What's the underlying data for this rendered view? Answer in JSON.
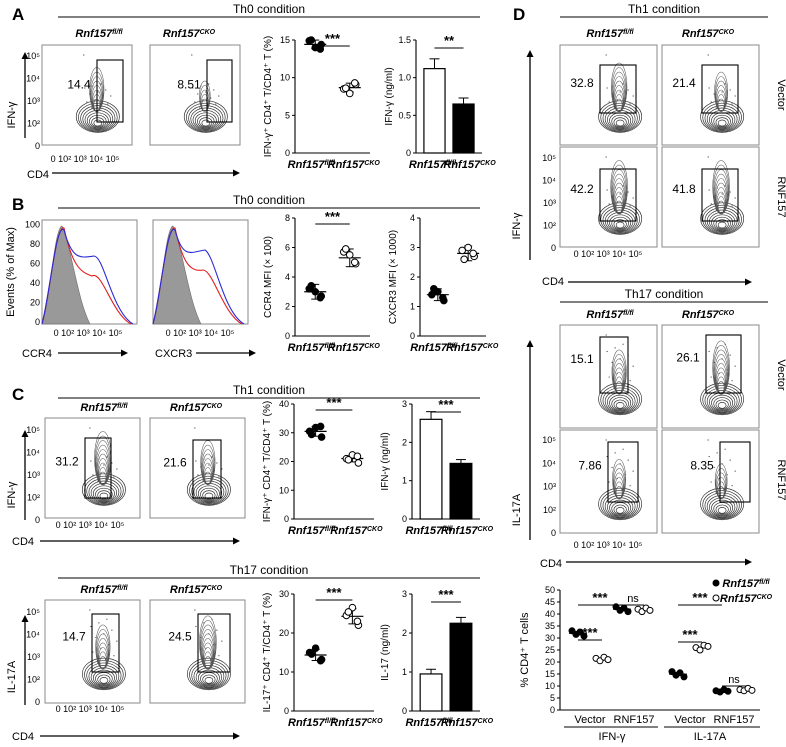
{
  "figure": {
    "panel_labels": [
      "A",
      "B",
      "C",
      "D"
    ],
    "genotypes": {
      "flox_base": "Rnf157",
      "flox_sup": "fl/fl",
      "cko_base": "Rnf157",
      "cko_sup": "CKO"
    },
    "axis_text": {
      "cd4": "CD4",
      "ifng": "IFN-γ",
      "il17a": "IL-17A",
      "ccr4": "CCR4",
      "cxcr3": "CXCR3",
      "events": "Events (% of Max)"
    },
    "flow_ticks": {
      "x": [
        "0",
        "10²",
        "10³",
        "10⁴",
        "10⁵"
      ],
      "y": [
        "0",
        "10²",
        "10³",
        "10⁴",
        "10⁵"
      ],
      "x_compact": "0 10² 10³ 10⁴ 10⁵",
      "hist_y": [
        "0",
        "20",
        "40",
        "60",
        "80",
        "100"
      ]
    }
  },
  "panel_A": {
    "condition": "Th0 condition",
    "flow": {
      "flox_pct": "14.4",
      "cko_pct": "8.51"
    },
    "chart_data": [
      {
        "type": "scatter",
        "ylabel": "IFN-γ⁺ CD4⁺ T/CD4⁺ T (%)",
        "categories": [
          "Rnf157 fl/fl",
          "Rnf157 CKO"
        ],
        "series": [
          {
            "name": "Rnf157 fl/fl",
            "values": [
              14.9,
              14.4,
              14.0,
              15.0,
              13.8
            ]
          },
          {
            "name": "Rnf157 CKO",
            "values": [
              8.5,
              9.1,
              7.9,
              8.6,
              9.3
            ]
          }
        ],
        "ylim": [
          0,
          15
        ],
        "yticks": [
          0,
          5,
          10,
          15
        ],
        "significance": "***"
      },
      {
        "type": "bar",
        "ylabel": "IFN-γ (ng/ml)",
        "categories": [
          "Rnf157 fl/fl",
          "Rnf157 CKO"
        ],
        "values": [
          1.12,
          0.65
        ],
        "errors": [
          0.13,
          0.08
        ],
        "ylim": [
          0,
          1.5
        ],
        "yticks": [
          "0",
          "0.5",
          "1.0",
          "1.5"
        ],
        "significance": "**"
      }
    ]
  },
  "panel_B": {
    "condition": "Th0 condition",
    "chart_data": [
      {
        "type": "scatter",
        "ylabel": "CCR4 MFI (× 100)",
        "categories": [
          "Rnf157 fl/fl",
          "Rnf157 CKO"
        ],
        "means": [
          3.0,
          5.3
        ],
        "errors": [
          0.5,
          0.6
        ],
        "series": [
          {
            "name": "Rnf157 fl/fl",
            "values": [
              3.2,
              2.7,
              3.0,
              3.4,
              2.6
            ]
          },
          {
            "name": "Rnf157 CKO",
            "values": [
              5.7,
              4.9,
              5.5,
              5.9,
              5.0
            ]
          }
        ],
        "ylim": [
          0,
          8
        ],
        "yticks": [
          0,
          2,
          4,
          6,
          8
        ],
        "significance": "***"
      },
      {
        "type": "scatter",
        "ylabel": "CXCR3 MFI (× 1000)",
        "categories": [
          "Rnf157 fl/fl",
          "Rnf157 CKO"
        ],
        "means": [
          1.4,
          2.8
        ],
        "errors": [
          0.2,
          0.25
        ],
        "series": [
          {
            "name": "Rnf157 fl/fl",
            "values": [
              1.4,
              1.2,
              1.5,
              1.6,
              1.3
            ]
          },
          {
            "name": "Rnf157 CKO",
            "values": [
              2.9,
              2.7,
              3.0,
              2.6,
              2.8
            ]
          }
        ],
        "ylim": [
          0,
          4
        ],
        "yticks": [
          0,
          1,
          2,
          3,
          4
        ]
      }
    ]
  },
  "panel_C": {
    "th1": {
      "condition": "Th1 condition",
      "flow": {
        "flox_pct": "31.2",
        "cko_pct": "21.6"
      },
      "chart_data": [
        {
          "type": "scatter",
          "ylabel": "IFN-γ⁺ CD4⁺ T/CD4⁺ T (%)",
          "categories": [
            "Rnf157 fl/fl",
            "Rnf157 CKO"
          ],
          "series": [
            {
              "name": "Rnf157 fl/fl",
              "values": [
                30.5,
                28.5,
                31.8,
                29.4,
                32.2
              ]
            },
            {
              "name": "Rnf157 CKO",
              "values": [
                21.0,
                19.5,
                22.3,
                20.6,
                21.8
              ]
            }
          ],
          "ylim": [
            0,
            40
          ],
          "yticks": [
            0,
            10,
            20,
            30,
            40
          ],
          "significance": "***"
        },
        {
          "type": "bar",
          "ylabel": "IFN-γ (ng/ml)",
          "categories": [
            "Rnf157 fl/fl",
            "Rnf157 CKO"
          ],
          "values": [
            2.6,
            1.45
          ],
          "errors": [
            0.2,
            0.1
          ],
          "ylim": [
            0,
            3
          ],
          "yticks": [
            0,
            1,
            2,
            3
          ],
          "significance": "***"
        }
      ]
    },
    "th17": {
      "condition": "Th17 condition",
      "flow": {
        "flox_pct": "14.7",
        "cko_pct": "24.5"
      },
      "chart_data": [
        {
          "type": "scatter",
          "ylabel": "IL-17⁺ CD4⁺ T/CD4⁺ T (%)",
          "categories": [
            "Rnf157 fl/fl",
            "Rnf157 CKO"
          ],
          "series": [
            {
              "name": "Rnf157 fl/fl",
              "values": [
                15.0,
                13.2,
                16.1,
                14.6,
                12.9
              ]
            },
            {
              "name": "Rnf157 CKO",
              "values": [
                24.5,
                22.0,
                26.5,
                25.4,
                23.0
              ]
            }
          ],
          "ylim": [
            0,
            30
          ],
          "yticks": [
            0,
            10,
            20,
            30
          ],
          "significance": "***"
        },
        {
          "type": "bar",
          "ylabel": "IL-17 (ng/ml)",
          "categories": [
            "Rnf157 fl/fl",
            "Rnf157 CKO"
          ],
          "values": [
            0.95,
            2.25
          ],
          "errors": [
            0.12,
            0.15
          ],
          "ylim": [
            0,
            3
          ],
          "yticks": [
            0,
            1,
            2,
            3
          ],
          "significance": "***"
        }
      ]
    }
  },
  "panel_D": {
    "th1": {
      "condition": "Th1 condition",
      "row_labels": [
        "Vector",
        "RNF157"
      ],
      "values": {
        "vector_flox": "32.8",
        "vector_cko": "21.4",
        "rnf_flox": "42.2",
        "rnf_cko": "41.8"
      }
    },
    "th17": {
      "condition": "Th17 condition",
      "row_labels": [
        "Vector",
        "RNF157"
      ],
      "values": {
        "vector_flox": "15.1",
        "vector_cko": "26.1",
        "rnf_flox": "7.86",
        "rnf_cko": "8.35"
      }
    },
    "chart_data": {
      "type": "scatter",
      "ylabel": "% CD4⁺ T cells",
      "ylim": [
        0,
        50
      ],
      "yticks": [
        0,
        5,
        10,
        15,
        20,
        25,
        30,
        35,
        40,
        45,
        50
      ],
      "categories": [
        "Vector",
        "RNF157",
        "Vector",
        "RNF157"
      ],
      "groups": [
        "IFN-γ",
        "IL-17A"
      ],
      "legend": [
        "Rnf157 fl/fl",
        "Rnf157 CKO"
      ],
      "series": [
        {
          "name": "Rnf157 fl/fl",
          "values": [
            [
              33.0,
              31.5,
              32.5,
              30.8
            ],
            [
              43.0,
              41.5,
              42.5,
              41.0
            ],
            [
              16.0,
              14.5,
              15.5,
              13.8
            ],
            [
              8.0,
              7.5,
              8.5,
              7.8
            ]
          ]
        },
        {
          "name": "Rnf157 CKO",
          "values": [
            [
              21.5,
              20.5,
              22.0,
              21.0
            ],
            [
              42.0,
              41.0,
              42.5,
              41.5
            ],
            [
              26.0,
              25.0,
              27.0,
              26.5
            ],
            [
              8.5,
              8.0,
              9.0,
              8.2
            ]
          ]
        }
      ],
      "significance": [
        "***",
        "***",
        "ns",
        "***",
        "***",
        "ns"
      ]
    }
  }
}
